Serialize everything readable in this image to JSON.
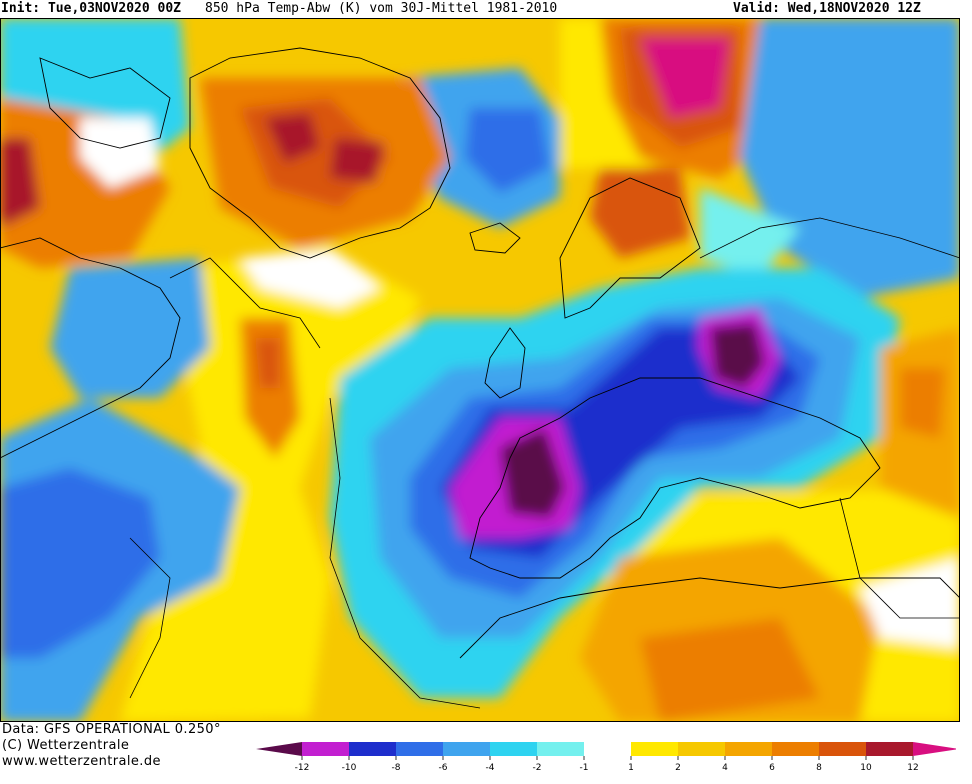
{
  "header": {
    "init": "Init: Tue,03NOV2020 00Z",
    "title": "850 hPa Temp-Abw (K) vom 30J-Mittel 1981-2010",
    "valid": "Valid: Wed,18NOV2020 12Z"
  },
  "footer": {
    "data_source": "Data: GFS OPERATIONAL 0.250°",
    "copyright": "(C) Wetterzentrale",
    "website": "www.wetterzentrale.de"
  },
  "colorbar": {
    "ticks": [
      "-12",
      "-10",
      "-8",
      "-6",
      "-4",
      "-2",
      "-1",
      "1",
      "2",
      "4",
      "6",
      "8",
      "10",
      "12"
    ],
    "colors": {
      "lt_m12": "#5a0a4a",
      "m12_m10": "#c21fd0",
      "m10_m8": "#1e2ecc",
      "m8_m6": "#2f6ee8",
      "m6_m4": "#3fa4ee",
      "m4_m2": "#2ed3f0",
      "m2_m1": "#74f0ee",
      "m1_p1": "#ffffff",
      "p1_p2": "#ffe800",
      "p2_p4": "#f6c800",
      "p4_p6": "#f4a500",
      "p6_p8": "#ec7e00",
      "p8_p10": "#d9540a",
      "p10_p12": "#a8182c",
      "gt_p12": "#d80f80"
    }
  }
}
